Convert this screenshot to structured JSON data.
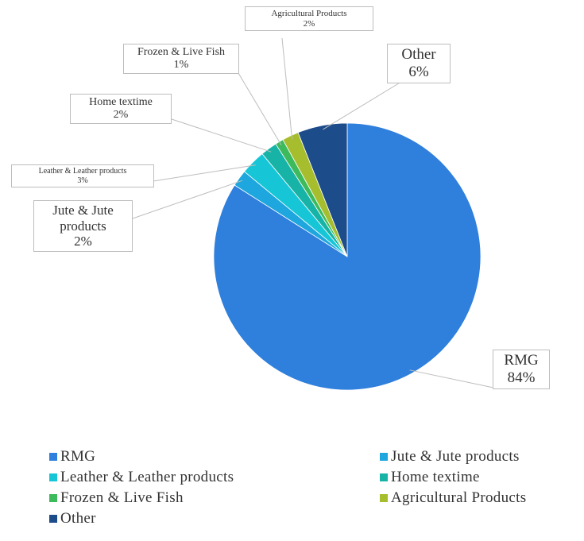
{
  "chart_data": {
    "type": "pie",
    "categories": [
      "RMG",
      "Jute & Jute products",
      "Leather & Leather products",
      "Home textime",
      "Frozen & Live Fish",
      "Agricultural Products",
      "Other"
    ],
    "values": [
      84,
      2,
      3,
      2,
      1,
      2,
      6
    ],
    "value_labels": [
      "84%",
      "2%",
      "3%",
      "2%",
      "1%",
      "2%",
      "6%"
    ],
    "colors": [
      "#2f7fdc",
      "#1ea6de",
      "#16c6d6",
      "#17b3a6",
      "#3dbb5c",
      "#a6bd2e",
      "#1d4c8a"
    ],
    "legend": "bottom"
  }
}
